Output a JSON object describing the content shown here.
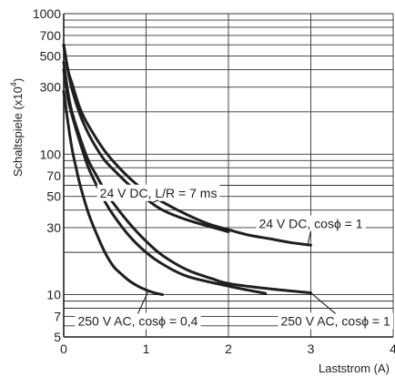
{
  "chart_data": {
    "type": "line",
    "xlabel": "Laststrom (A)",
    "ylabel": "Schaltspiele (x10",
    "ylabel_exp": "4",
    "ylabel_close": ")",
    "xlim": [
      0,
      4
    ],
    "ylim": [
      5,
      1000
    ],
    "yscale": "log",
    "grid": true,
    "x_ticks": [
      0,
      1,
      2,
      3,
      4
    ],
    "x_tick_labels": [
      "0",
      "1",
      "2",
      "3",
      "4"
    ],
    "y_ticks": [
      5,
      7,
      10,
      30,
      50,
      70,
      100,
      300,
      500,
      700,
      1000
    ],
    "y_tick_labels": [
      "5",
      "7",
      "10",
      "30",
      "50",
      "70",
      "100",
      "300",
      "500",
      "700",
      "1000"
    ],
    "y_gridlines": [
      5,
      6,
      7,
      8,
      9,
      10,
      20,
      30,
      40,
      50,
      60,
      70,
      80,
      90,
      100,
      200,
      300,
      400,
      500,
      600,
      700,
      800,
      900,
      1000
    ],
    "line_color": "#1f1f1f",
    "series": [
      {
        "name": "24 V DC, L/R = 7 ms",
        "x": [
          0,
          0.05,
          0.1,
          0.2,
          0.3,
          0.4,
          0.5,
          0.6,
          0.8,
          1.0,
          1.2,
          1.5,
          2.0
        ],
        "y": [
          600,
          400,
          290,
          190,
          140,
          110,
          90,
          78,
          60,
          48,
          40,
          34,
          28
        ]
      },
      {
        "name": "24 V DC, cosϕ = 1",
        "x": [
          0,
          0.05,
          0.1,
          0.2,
          0.3,
          0.5,
          0.75,
          1.0,
          1.25,
          1.5,
          1.75,
          2.0,
          2.25,
          2.5,
          2.75,
          3.0
        ],
        "y": [
          600,
          400,
          320,
          210,
          160,
          105,
          72,
          54,
          44,
          37,
          32,
          29,
          26.5,
          25,
          23.5,
          22.5
        ]
      },
      {
        "name": "250 V AC, cosϕ = 1",
        "x": [
          0,
          0.05,
          0.1,
          0.2,
          0.3,
          0.4,
          0.5,
          0.6,
          0.8,
          1.0,
          1.2,
          1.5,
          1.8,
          2.0,
          2.5,
          3.0
        ],
        "y": [
          450,
          280,
          200,
          130,
          90,
          70,
          55,
          45,
          32,
          24,
          19,
          15,
          13,
          12,
          11,
          10.3
        ]
      },
      {
        "name": "",
        "x": [
          0,
          0.05,
          0.1,
          0.2,
          0.3,
          0.4,
          0.5,
          0.6,
          0.8,
          1.0,
          1.2,
          1.5,
          2.0,
          2.45
        ],
        "y": [
          400,
          250,
          190,
          120,
          80,
          60,
          46,
          37,
          26,
          20,
          16.5,
          13.5,
          11.5,
          10.2
        ]
      },
      {
        "name": "250 V AC, cosϕ = 0,4",
        "x": [
          0,
          0.05,
          0.1,
          0.15,
          0.2,
          0.3,
          0.4,
          0.5,
          0.6,
          0.7,
          0.8,
          0.9,
          1.0,
          1.1,
          1.2
        ],
        "y": [
          280,
          170,
          110,
          80,
          60,
          38,
          27,
          20,
          16,
          14,
          12.5,
          11.5,
          10.8,
          10.3,
          10
        ]
      }
    ],
    "annotations": [
      {
        "text": "24 V DC, L/R = 7 ms",
        "series_index": 0,
        "x": 1.15,
        "y": 53
      },
      {
        "text": "24 V DC, cosϕ = 1",
        "series_index": 1,
        "x": 3.0,
        "y": 32
      },
      {
        "text": "250 V AC, cosϕ = 0,4",
        "series_index": 4,
        "x": 0.9,
        "y": 6.5
      },
      {
        "text": "250 V AC, cosϕ = 1",
        "series_index": 2,
        "x": 3.3,
        "y": 6.5
      }
    ]
  }
}
